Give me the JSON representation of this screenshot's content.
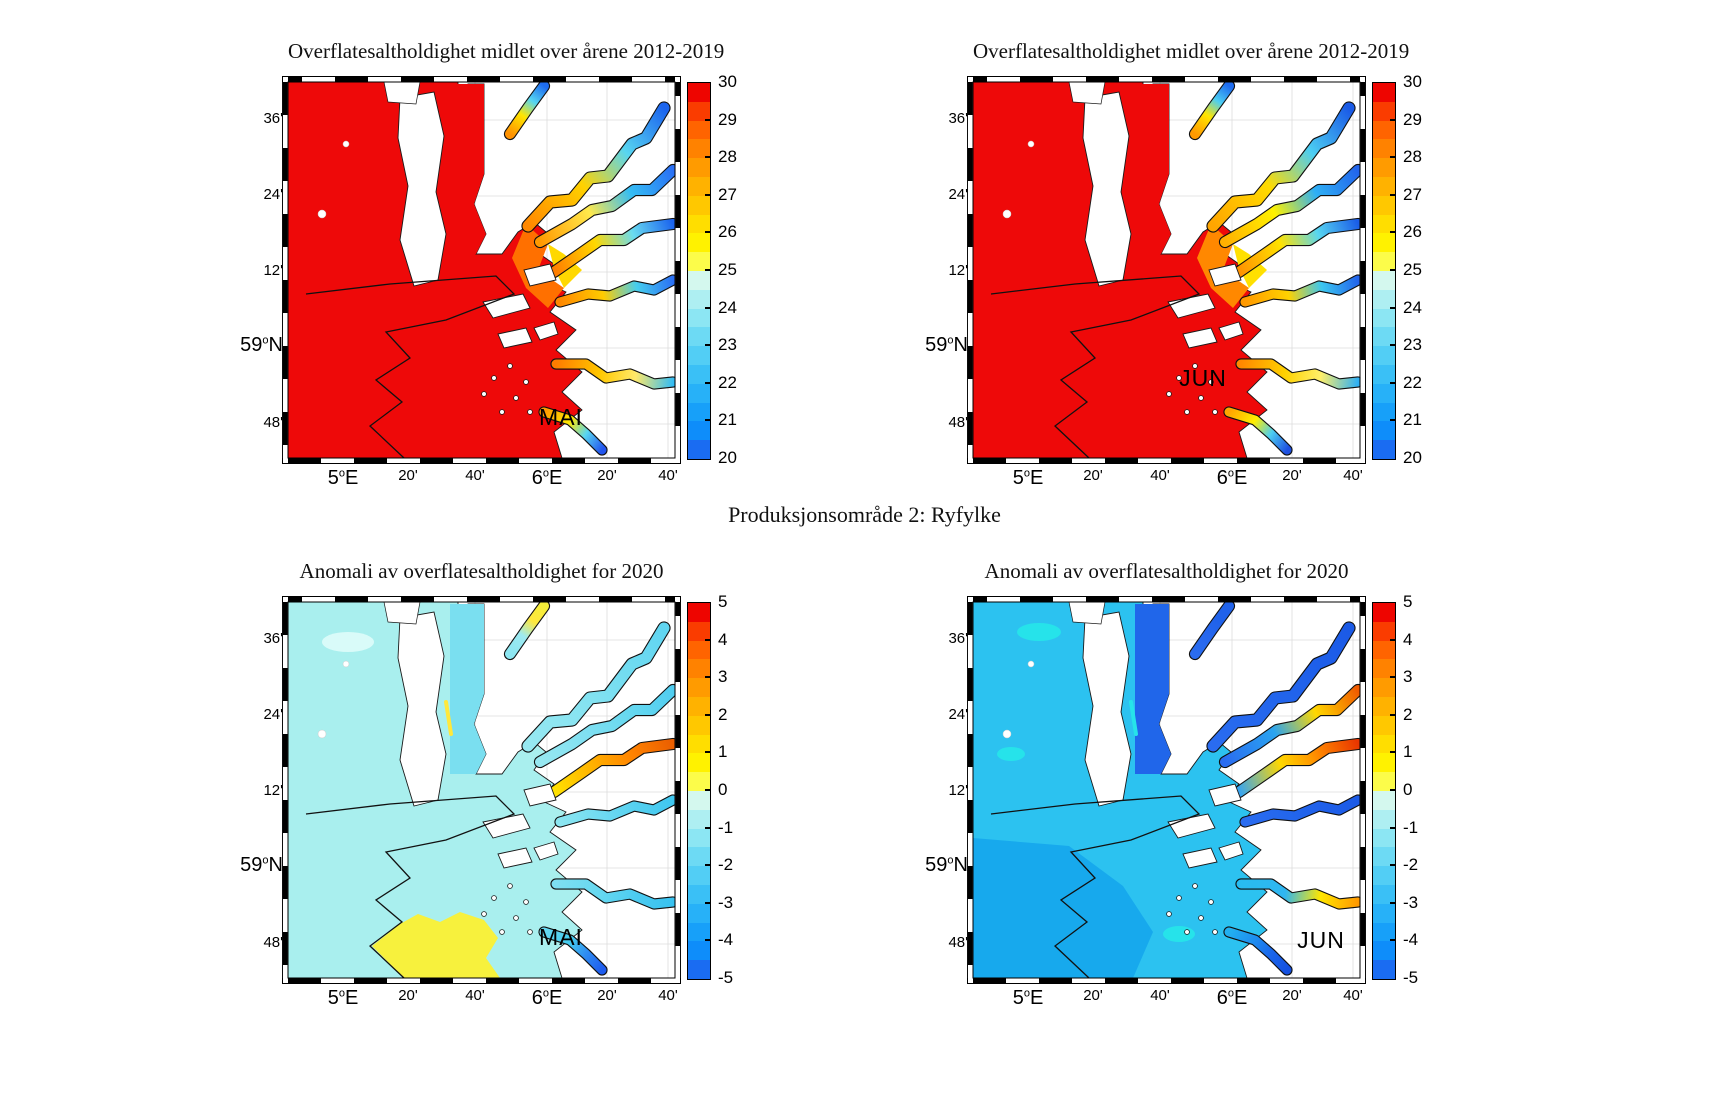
{
  "figure_caption": "Produksjonsområde 2: Ryfylke",
  "panels": [
    {
      "key": "mean-mai",
      "title": "Overflatesaltholdighet midlet over årene 2012-2019",
      "month_label": "MAI",
      "colorbar_ticks": [
        "30",
        "29",
        "28",
        "27",
        "26",
        "25",
        "24",
        "23",
        "22",
        "21",
        "20"
      ],
      "palette_key": "mean_mai"
    },
    {
      "key": "mean-jun",
      "title": "Overflatesaltholdighet midlet over årene 2012-2019",
      "month_label": "JUN",
      "colorbar_ticks": [
        "30",
        "29",
        "28",
        "27",
        "26",
        "25",
        "24",
        "23",
        "22",
        "21",
        "20"
      ],
      "palette_key": "mean_jun"
    },
    {
      "key": "anom-mai",
      "title": "Anomali av overflatesaltholdighet for 2020",
      "month_label": "MAI",
      "colorbar_ticks": [
        "5",
        "4",
        "3",
        "2",
        "1",
        "0",
        "-1",
        "-2",
        "-3",
        "-4",
        "-5"
      ],
      "palette_key": "anom_mai"
    },
    {
      "key": "anom-jun",
      "title": "Anomali av overflatesaltholdighet for 2020",
      "month_label": "JUN",
      "colorbar_ticks": [
        "5",
        "4",
        "3",
        "2",
        "1",
        "0",
        "-1",
        "-2",
        "-3",
        "-4",
        "-5"
      ],
      "palette_key": "anom_jun"
    }
  ],
  "axes": {
    "x_ticks": [
      {
        "text": "5",
        "sup": "o",
        "post": "E",
        "major": true
      },
      {
        "text": "20'"
      },
      {
        "text": "40'"
      },
      {
        "text": "6",
        "sup": "o",
        "post": "E",
        "major": true
      },
      {
        "text": "20'"
      },
      {
        "text": "40'"
      }
    ],
    "y_ticks": [
      {
        "text": "36'"
      },
      {
        "text": "24'"
      },
      {
        "text": "12'"
      },
      {
        "text": "59",
        "sup": "o",
        "post": "N",
        "major": true
      },
      {
        "text": "48'"
      }
    ]
  },
  "colormap_bands": [
    "#ee0500",
    "#fa3c00",
    "#ff6400",
    "#ff8200",
    "#ff9b00",
    "#ffb200",
    "#ffc800",
    "#ffde00",
    "#fff200",
    "#fcfc4a",
    "#d4f8ee",
    "#aeeff2",
    "#8ce6f3",
    "#6ddaf4",
    "#52cef5",
    "#3ac0f6",
    "#27b1f8",
    "#17a0f9",
    "#0e8dfa",
    "#1a6cf2"
  ],
  "palettes": {
    "mean_mai": {
      "sea": "#ee0909",
      "nc": "#ee0909",
      "wedge": "#ff7000",
      "wedge2": "#ffd800",
      "arms": {
        "top": [
          "#ff9100",
          "#ffe600",
          "#55d5f2",
          "#1e6cf0"
        ],
        "ne1": [
          "#ff8800",
          "#ffd200",
          "#58d6f1",
          "#1b64ee"
        ],
        "ne2": [
          "#ff9900",
          "#ffe94c",
          "#35bdf3",
          "#2a70f5"
        ],
        "e1": [
          "#ff7b00",
          "#ffd800",
          "#6adcf0",
          "#1b64ee"
        ],
        "e2": [
          "#ff8800",
          "#ffcc00",
          "#46cdee",
          "#2a70f5"
        ],
        "se": [
          "#ff7b00",
          "#ffc800",
          "#ffe96a",
          "#35bdf3"
        ],
        "lyse": [
          "#ff9900",
          "#ffe600",
          "#58d6f1",
          "#2255ee"
        ]
      }
    },
    "mean_jun": {
      "sea": "#ee0909",
      "nc": "#ee0909",
      "wedge": "#ff8800",
      "wedge2": "#ffe000",
      "arms": {
        "top": [
          "#ff9900",
          "#ffe600",
          "#4ccef2",
          "#1e6cf0"
        ],
        "ne1": [
          "#ffa500",
          "#ffdb00",
          "#4ccef2",
          "#1a5ae6"
        ],
        "ne2": [
          "#ffb000",
          "#fff200",
          "#2fb0f4",
          "#2264ec"
        ],
        "e1": [
          "#ff9100",
          "#ffe200",
          "#58d6f1",
          "#1b5ee8"
        ],
        "e2": [
          "#ff9900",
          "#ffd200",
          "#3cc6f0",
          "#2264ec"
        ],
        "se": [
          "#ff8800",
          "#ffd200",
          "#fff06a",
          "#2fb0f4"
        ],
        "lyse": [
          "#ffa500",
          "#ffee00",
          "#4ccef2",
          "#1e50e0"
        ]
      }
    },
    "anom_mai": {
      "sea": "#a9efee",
      "nc": "#7adff0",
      "patch_yellow": "#f7f13d",
      "pale_blob": "#d9fbf9",
      "nc_accent": "#ffe83c",
      "arms": {
        "top": [
          "#8ce6f1",
          "#9deaf1",
          "#ffe83c",
          "#f4ee3a"
        ],
        "ne1": [
          "#97e8f1",
          "#86e3f1",
          "#72dcf1",
          "#60d5f1"
        ],
        "ne2": [
          "#97e8f1",
          "#7edff1",
          "#66d8f0",
          "#50cdf0"
        ],
        "e1": [
          "#ffe200",
          "#ffae00",
          "#ff8200",
          "#ea5e00"
        ],
        "e2": [
          "#8ce6f1",
          "#6edaf1",
          "#55d0f0",
          "#3fc7f0"
        ],
        "se": [
          "#7edff1",
          "#66d8f0",
          "#4ccbf0",
          "#38c2f0"
        ],
        "lyse": [
          "#66d8f0",
          "#44ccee",
          "#2e8cf2",
          "#1e5cee"
        ]
      }
    },
    "anom_jun": {
      "sea": "#2cc2f0",
      "nc": "#2066ea",
      "sea_dark": "#17a9ed",
      "sea_bright": "#26e3ea",
      "nc_accent": "#26e3ea",
      "arms": {
        "top": [
          "#2a6cf0",
          "#2667ee",
          "#2062ea",
          "#2062ea"
        ],
        "ne1": [
          "#2a6cf0",
          "#2366ec",
          "#1f60ea",
          "#1b5ae6"
        ],
        "ne2": [
          "#2a6cf0",
          "#2aa4f0",
          "#ffd800",
          "#f05a00"
        ],
        "e1": [
          "#35a4f2",
          "#ffd800",
          "#ff8800",
          "#e83600"
        ],
        "e2": [
          "#2a6cf0",
          "#2366ec",
          "#1f60ea",
          "#1b5ae6"
        ],
        "se": [
          "#28bcf0",
          "#2fb6f1",
          "#ffe600",
          "#ff9900"
        ],
        "lyse": [
          "#22b0f0",
          "#1e8cf0",
          "#1a66ea",
          "#1450e0"
        ]
      }
    }
  },
  "chart_data": [
    {
      "type": "heatmap",
      "title": "Overflatesaltholdighet midlet over årene 2012-2019",
      "month": "MAI",
      "region": "Produksjonsområde 2: Ryfylke",
      "colorbar_range": [
        20,
        30
      ],
      "colorbar_ticks": [
        30,
        29,
        28,
        27,
        26,
        25,
        24,
        23,
        22,
        21,
        20
      ],
      "x_ticks": [
        "5°E",
        "20'",
        "40'",
        "6°E",
        "20'",
        "40'"
      ],
      "y_ticks": [
        "36'",
        "24'",
        "12'",
        "59°N",
        "48'"
      ]
    },
    {
      "type": "heatmap",
      "title": "Overflatesaltholdighet midlet over årene 2012-2019",
      "month": "JUN",
      "region": "Produksjonsområde 2: Ryfylke",
      "colorbar_range": [
        20,
        30
      ],
      "colorbar_ticks": [
        30,
        29,
        28,
        27,
        26,
        25,
        24,
        23,
        22,
        21,
        20
      ],
      "x_ticks": [
        "5°E",
        "20'",
        "40'",
        "6°E",
        "20'",
        "40'"
      ],
      "y_ticks": [
        "36'",
        "24'",
        "12'",
        "59°N",
        "48'"
      ]
    },
    {
      "type": "heatmap",
      "title": "Anomali av overflatesaltholdighet for 2020",
      "month": "MAI",
      "region": "Produksjonsområde 2: Ryfylke",
      "colorbar_range": [
        -5,
        5
      ],
      "colorbar_ticks": [
        5,
        4,
        3,
        2,
        1,
        0,
        -1,
        -2,
        -3,
        -4,
        -5
      ],
      "x_ticks": [
        "5°E",
        "20'",
        "40'",
        "6°E",
        "20'",
        "40'"
      ],
      "y_ticks": [
        "36'",
        "24'",
        "12'",
        "59°N",
        "48'"
      ]
    },
    {
      "type": "heatmap",
      "title": "Anomali av overflatesaltholdighet for 2020",
      "month": "JUN",
      "region": "Produksjonsområde 2: Ryfylke",
      "colorbar_range": [
        -5,
        5
      ],
      "colorbar_ticks": [
        5,
        4,
        3,
        2,
        1,
        0,
        -1,
        -2,
        -3,
        -4,
        -5
      ],
      "x_ticks": [
        "5°E",
        "20'",
        "40'",
        "6°E",
        "20'",
        "40'"
      ],
      "y_ticks": [
        "36'",
        "24'",
        "12'",
        "59°N",
        "48'"
      ]
    }
  ]
}
